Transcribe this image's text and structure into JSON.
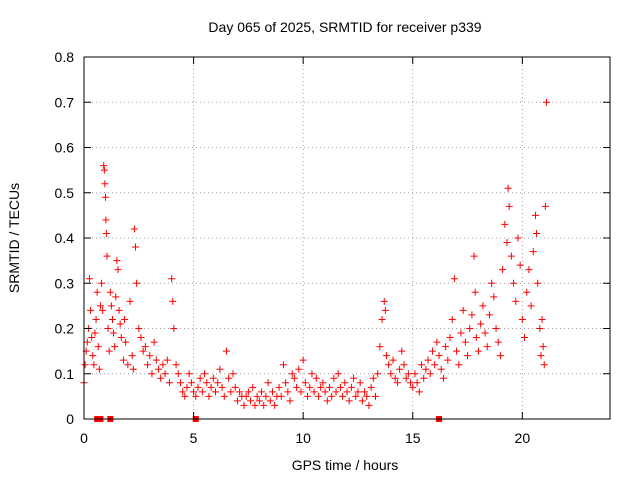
{
  "chart_data": {
    "type": "scatter",
    "title": "Day 065 of 2025, SRMTID for receiver p339",
    "xlabel": "GPS time / hours",
    "ylabel": "SRMTID / TECUs",
    "xlim": [
      0,
      24
    ],
    "ylim": [
      0,
      0.8
    ],
    "xticks": [
      0,
      5,
      10,
      15,
      20
    ],
    "yticks": [
      0,
      0.1,
      0.2,
      0.3,
      0.4,
      0.5,
      0.6,
      0.7,
      0.8
    ],
    "xtick_labels": [
      "0",
      "5",
      "10",
      "15",
      "20"
    ],
    "ytick_labels": [
      "0",
      "0.1",
      "0.2",
      "0.3",
      "0.4",
      "0.5",
      "0.6",
      "0.7",
      "0.8"
    ],
    "grid": true,
    "marker": "+",
    "marker_color": "#ff0000",
    "baseline_markers_x": [
      0.6,
      0.75,
      1.2,
      5.1,
      16.2
    ],
    "series": [
      {
        "name": "SRMTID",
        "points": [
          [
            0.0,
            0.08
          ],
          [
            0.05,
            0.12
          ],
          [
            0.1,
            0.15
          ],
          [
            0.15,
            0.17
          ],
          [
            0.2,
            0.2
          ],
          [
            0.25,
            0.31
          ],
          [
            0.3,
            0.24
          ],
          [
            0.35,
            0.18
          ],
          [
            0.4,
            0.14
          ],
          [
            0.45,
            0.12
          ],
          [
            0.5,
            0.19
          ],
          [
            0.55,
            0.22
          ],
          [
            0.6,
            0.28
          ],
          [
            0.65,
            0.16
          ],
          [
            0.7,
            0.11
          ],
          [
            0.75,
            0.25
          ],
          [
            0.8,
            0.3
          ],
          [
            0.85,
            0.24
          ],
          [
            0.9,
            0.56
          ],
          [
            0.93,
            0.55
          ],
          [
            0.95,
            0.52
          ],
          [
            0.98,
            0.49
          ],
          [
            1.0,
            0.44
          ],
          [
            1.02,
            0.41
          ],
          [
            1.05,
            0.36
          ],
          [
            1.1,
            0.2
          ],
          [
            1.15,
            0.15
          ],
          [
            1.2,
            0.28
          ],
          [
            1.25,
            0.25
          ],
          [
            1.3,
            0.22
          ],
          [
            1.35,
            0.19
          ],
          [
            1.4,
            0.16
          ],
          [
            1.45,
            0.27
          ],
          [
            1.5,
            0.35
          ],
          [
            1.55,
            0.33
          ],
          [
            1.6,
            0.24
          ],
          [
            1.65,
            0.21
          ],
          [
            1.7,
            0.18
          ],
          [
            1.8,
            0.13
          ],
          [
            1.85,
            0.22
          ],
          [
            1.9,
            0.17
          ],
          [
            2.0,
            0.12
          ],
          [
            2.1,
            0.26
          ],
          [
            2.2,
            0.14
          ],
          [
            2.25,
            0.11
          ],
          [
            2.3,
            0.42
          ],
          [
            2.35,
            0.38
          ],
          [
            2.4,
            0.3
          ],
          [
            2.5,
            0.2
          ],
          [
            2.6,
            0.18
          ],
          [
            2.7,
            0.15
          ],
          [
            2.8,
            0.16
          ],
          [
            2.9,
            0.12
          ],
          [
            3.0,
            0.14
          ],
          [
            3.1,
            0.1
          ],
          [
            3.2,
            0.17
          ],
          [
            3.3,
            0.13
          ],
          [
            3.4,
            0.11
          ],
          [
            3.5,
            0.09
          ],
          [
            3.6,
            0.12
          ],
          [
            3.7,
            0.1
          ],
          [
            3.8,
            0.13
          ],
          [
            3.9,
            0.08
          ],
          [
            4.0,
            0.31
          ],
          [
            4.05,
            0.26
          ],
          [
            4.1,
            0.2
          ],
          [
            4.2,
            0.12
          ],
          [
            4.3,
            0.1
          ],
          [
            4.4,
            0.08
          ],
          [
            4.5,
            0.06
          ],
          [
            4.6,
            0.05
          ],
          [
            4.7,
            0.07
          ],
          [
            4.8,
            0.1
          ],
          [
            4.9,
            0.08
          ],
          [
            5.0,
            0.06
          ],
          [
            5.1,
            0.05
          ],
          [
            5.2,
            0.07
          ],
          [
            5.3,
            0.09
          ],
          [
            5.4,
            0.06
          ],
          [
            5.5,
            0.1
          ],
          [
            5.6,
            0.08
          ],
          [
            5.7,
            0.05
          ],
          [
            5.8,
            0.07
          ],
          [
            5.9,
            0.09
          ],
          [
            6.0,
            0.06
          ],
          [
            6.1,
            0.08
          ],
          [
            6.2,
            0.11
          ],
          [
            6.3,
            0.07
          ],
          [
            6.4,
            0.05
          ],
          [
            6.5,
            0.15
          ],
          [
            6.6,
            0.09
          ],
          [
            6.7,
            0.06
          ],
          [
            6.8,
            0.1
          ],
          [
            6.9,
            0.07
          ],
          [
            7.0,
            0.04
          ],
          [
            7.1,
            0.06
          ],
          [
            7.2,
            0.05
          ],
          [
            7.3,
            0.03
          ],
          [
            7.4,
            0.05
          ],
          [
            7.5,
            0.06
          ],
          [
            7.6,
            0.04
          ],
          [
            7.7,
            0.07
          ],
          [
            7.8,
            0.03
          ],
          [
            7.9,
            0.05
          ],
          [
            8.0,
            0.04
          ],
          [
            8.1,
            0.06
          ],
          [
            8.2,
            0.03
          ],
          [
            8.3,
            0.05
          ],
          [
            8.4,
            0.08
          ],
          [
            8.5,
            0.04
          ],
          [
            8.6,
            0.06
          ],
          [
            8.7,
            0.03
          ],
          [
            8.8,
            0.05
          ],
          [
            8.9,
            0.07
          ],
          [
            9.0,
            0.05
          ],
          [
            9.1,
            0.12
          ],
          [
            9.2,
            0.08
          ],
          [
            9.3,
            0.06
          ],
          [
            9.4,
            0.04
          ],
          [
            9.5,
            0.1
          ],
          [
            9.6,
            0.09
          ],
          [
            9.7,
            0.07
          ],
          [
            9.8,
            0.11
          ],
          [
            9.9,
            0.06
          ],
          [
            10.0,
            0.13
          ],
          [
            10.1,
            0.08
          ],
          [
            10.2,
            0.05
          ],
          [
            10.3,
            0.07
          ],
          [
            10.4,
            0.1
          ],
          [
            10.5,
            0.06
          ],
          [
            10.6,
            0.09
          ],
          [
            10.7,
            0.05
          ],
          [
            10.8,
            0.07
          ],
          [
            10.9,
            0.08
          ],
          [
            11.0,
            0.06
          ],
          [
            11.1,
            0.04
          ],
          [
            11.2,
            0.07
          ],
          [
            11.3,
            0.05
          ],
          [
            11.4,
            0.09
          ],
          [
            11.5,
            0.06
          ],
          [
            11.6,
            0.1
          ],
          [
            11.7,
            0.07
          ],
          [
            11.8,
            0.05
          ],
          [
            11.9,
            0.08
          ],
          [
            12.0,
            0.06
          ],
          [
            12.1,
            0.04
          ],
          [
            12.2,
            0.07
          ],
          [
            12.3,
            0.09
          ],
          [
            12.4,
            0.05
          ],
          [
            12.5,
            0.06
          ],
          [
            12.6,
            0.08
          ],
          [
            12.7,
            0.04
          ],
          [
            12.8,
            0.06
          ],
          [
            12.9,
            0.05
          ],
          [
            13.0,
            0.03
          ],
          [
            13.1,
            0.07
          ],
          [
            13.2,
            0.09
          ],
          [
            13.3,
            0.05
          ],
          [
            13.4,
            0.1
          ],
          [
            13.5,
            0.16
          ],
          [
            13.6,
            0.22
          ],
          [
            13.7,
            0.26
          ],
          [
            13.75,
            0.24
          ],
          [
            13.8,
            0.14
          ],
          [
            13.9,
            0.12
          ],
          [
            14.0,
            0.1
          ],
          [
            14.1,
            0.13
          ],
          [
            14.2,
            0.09
          ],
          [
            14.3,
            0.08
          ],
          [
            14.4,
            0.11
          ],
          [
            14.5,
            0.15
          ],
          [
            14.6,
            0.12
          ],
          [
            14.7,
            0.09
          ],
          [
            14.8,
            0.1
          ],
          [
            14.9,
            0.08
          ],
          [
            15.0,
            0.07
          ],
          [
            15.1,
            0.1
          ],
          [
            15.2,
            0.08
          ],
          [
            15.3,
            0.06
          ],
          [
            15.4,
            0.12
          ],
          [
            15.5,
            0.09
          ],
          [
            15.6,
            0.11
          ],
          [
            15.7,
            0.13
          ],
          [
            15.8,
            0.1
          ],
          [
            15.9,
            0.15
          ],
          [
            16.0,
            0.12
          ],
          [
            16.1,
            0.17
          ],
          [
            16.2,
            0.14
          ],
          [
            16.3,
            0.11
          ],
          [
            16.4,
            0.09
          ],
          [
            16.5,
            0.16
          ],
          [
            16.6,
            0.13
          ],
          [
            16.7,
            0.18
          ],
          [
            16.8,
            0.22
          ],
          [
            16.9,
            0.31
          ],
          [
            17.0,
            0.15
          ],
          [
            17.1,
            0.12
          ],
          [
            17.2,
            0.19
          ],
          [
            17.3,
            0.24
          ],
          [
            17.4,
            0.17
          ],
          [
            17.5,
            0.14
          ],
          [
            17.6,
            0.2
          ],
          [
            17.7,
            0.23
          ],
          [
            17.8,
            0.36
          ],
          [
            17.85,
            0.28
          ],
          [
            17.9,
            0.18
          ],
          [
            18.0,
            0.15
          ],
          [
            18.1,
            0.21
          ],
          [
            18.2,
            0.25
          ],
          [
            18.3,
            0.19
          ],
          [
            18.4,
            0.16
          ],
          [
            18.5,
            0.23
          ],
          [
            18.6,
            0.3
          ],
          [
            18.7,
            0.27
          ],
          [
            18.8,
            0.2
          ],
          [
            18.9,
            0.17
          ],
          [
            19.0,
            0.14
          ],
          [
            19.1,
            0.33
          ],
          [
            19.2,
            0.43
          ],
          [
            19.3,
            0.39
          ],
          [
            19.35,
            0.51
          ],
          [
            19.4,
            0.47
          ],
          [
            19.5,
            0.36
          ],
          [
            19.6,
            0.3
          ],
          [
            19.7,
            0.26
          ],
          [
            19.8,
            0.4
          ],
          [
            19.9,
            0.34
          ],
          [
            20.0,
            0.22
          ],
          [
            20.1,
            0.18
          ],
          [
            20.2,
            0.28
          ],
          [
            20.3,
            0.33
          ],
          [
            20.4,
            0.25
          ],
          [
            20.5,
            0.37
          ],
          [
            20.6,
            0.45
          ],
          [
            20.65,
            0.41
          ],
          [
            20.7,
            0.3
          ],
          [
            20.8,
            0.2
          ],
          [
            20.85,
            0.14
          ],
          [
            20.9,
            0.22
          ],
          [
            20.95,
            0.16
          ],
          [
            21.0,
            0.12
          ],
          [
            21.05,
            0.47
          ],
          [
            21.1,
            0.7
          ]
        ]
      }
    ]
  }
}
